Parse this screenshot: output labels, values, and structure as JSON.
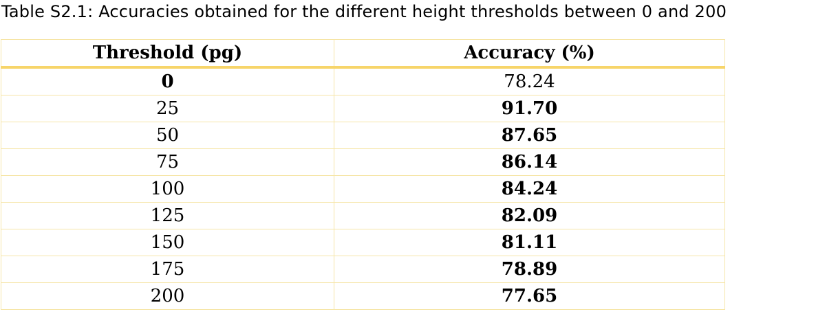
{
  "caption": "Table S2.1: Accuracies obtained for the different height thresholds between 0 and 200",
  "table": {
    "headers": [
      "Threshold (pg)",
      "Accuracy (%)"
    ],
    "rows": [
      {
        "threshold": "0",
        "accuracy": "78.24",
        "threshold_bold": true,
        "accuracy_bold": false
      },
      {
        "threshold": "25",
        "accuracy": "91.70",
        "threshold_bold": false,
        "accuracy_bold": true
      },
      {
        "threshold": "50",
        "accuracy": "87.65",
        "threshold_bold": false,
        "accuracy_bold": true
      },
      {
        "threshold": "75",
        "accuracy": "86.14",
        "threshold_bold": false,
        "accuracy_bold": true
      },
      {
        "threshold": "100",
        "accuracy": "84.24",
        "threshold_bold": false,
        "accuracy_bold": true
      },
      {
        "threshold": "125",
        "accuracy": "82.09",
        "threshold_bold": false,
        "accuracy_bold": true
      },
      {
        "threshold": "150",
        "accuracy": "81.11",
        "threshold_bold": false,
        "accuracy_bold": true
      },
      {
        "threshold": "175",
        "accuracy": "78.89",
        "threshold_bold": false,
        "accuracy_bold": true
      },
      {
        "threshold": "200",
        "accuracy": "77.65",
        "threshold_bold": false,
        "accuracy_bold": true
      }
    ]
  },
  "colors": {
    "grid_line": "#f6e5a6",
    "header_rule": "#f7d56a"
  }
}
